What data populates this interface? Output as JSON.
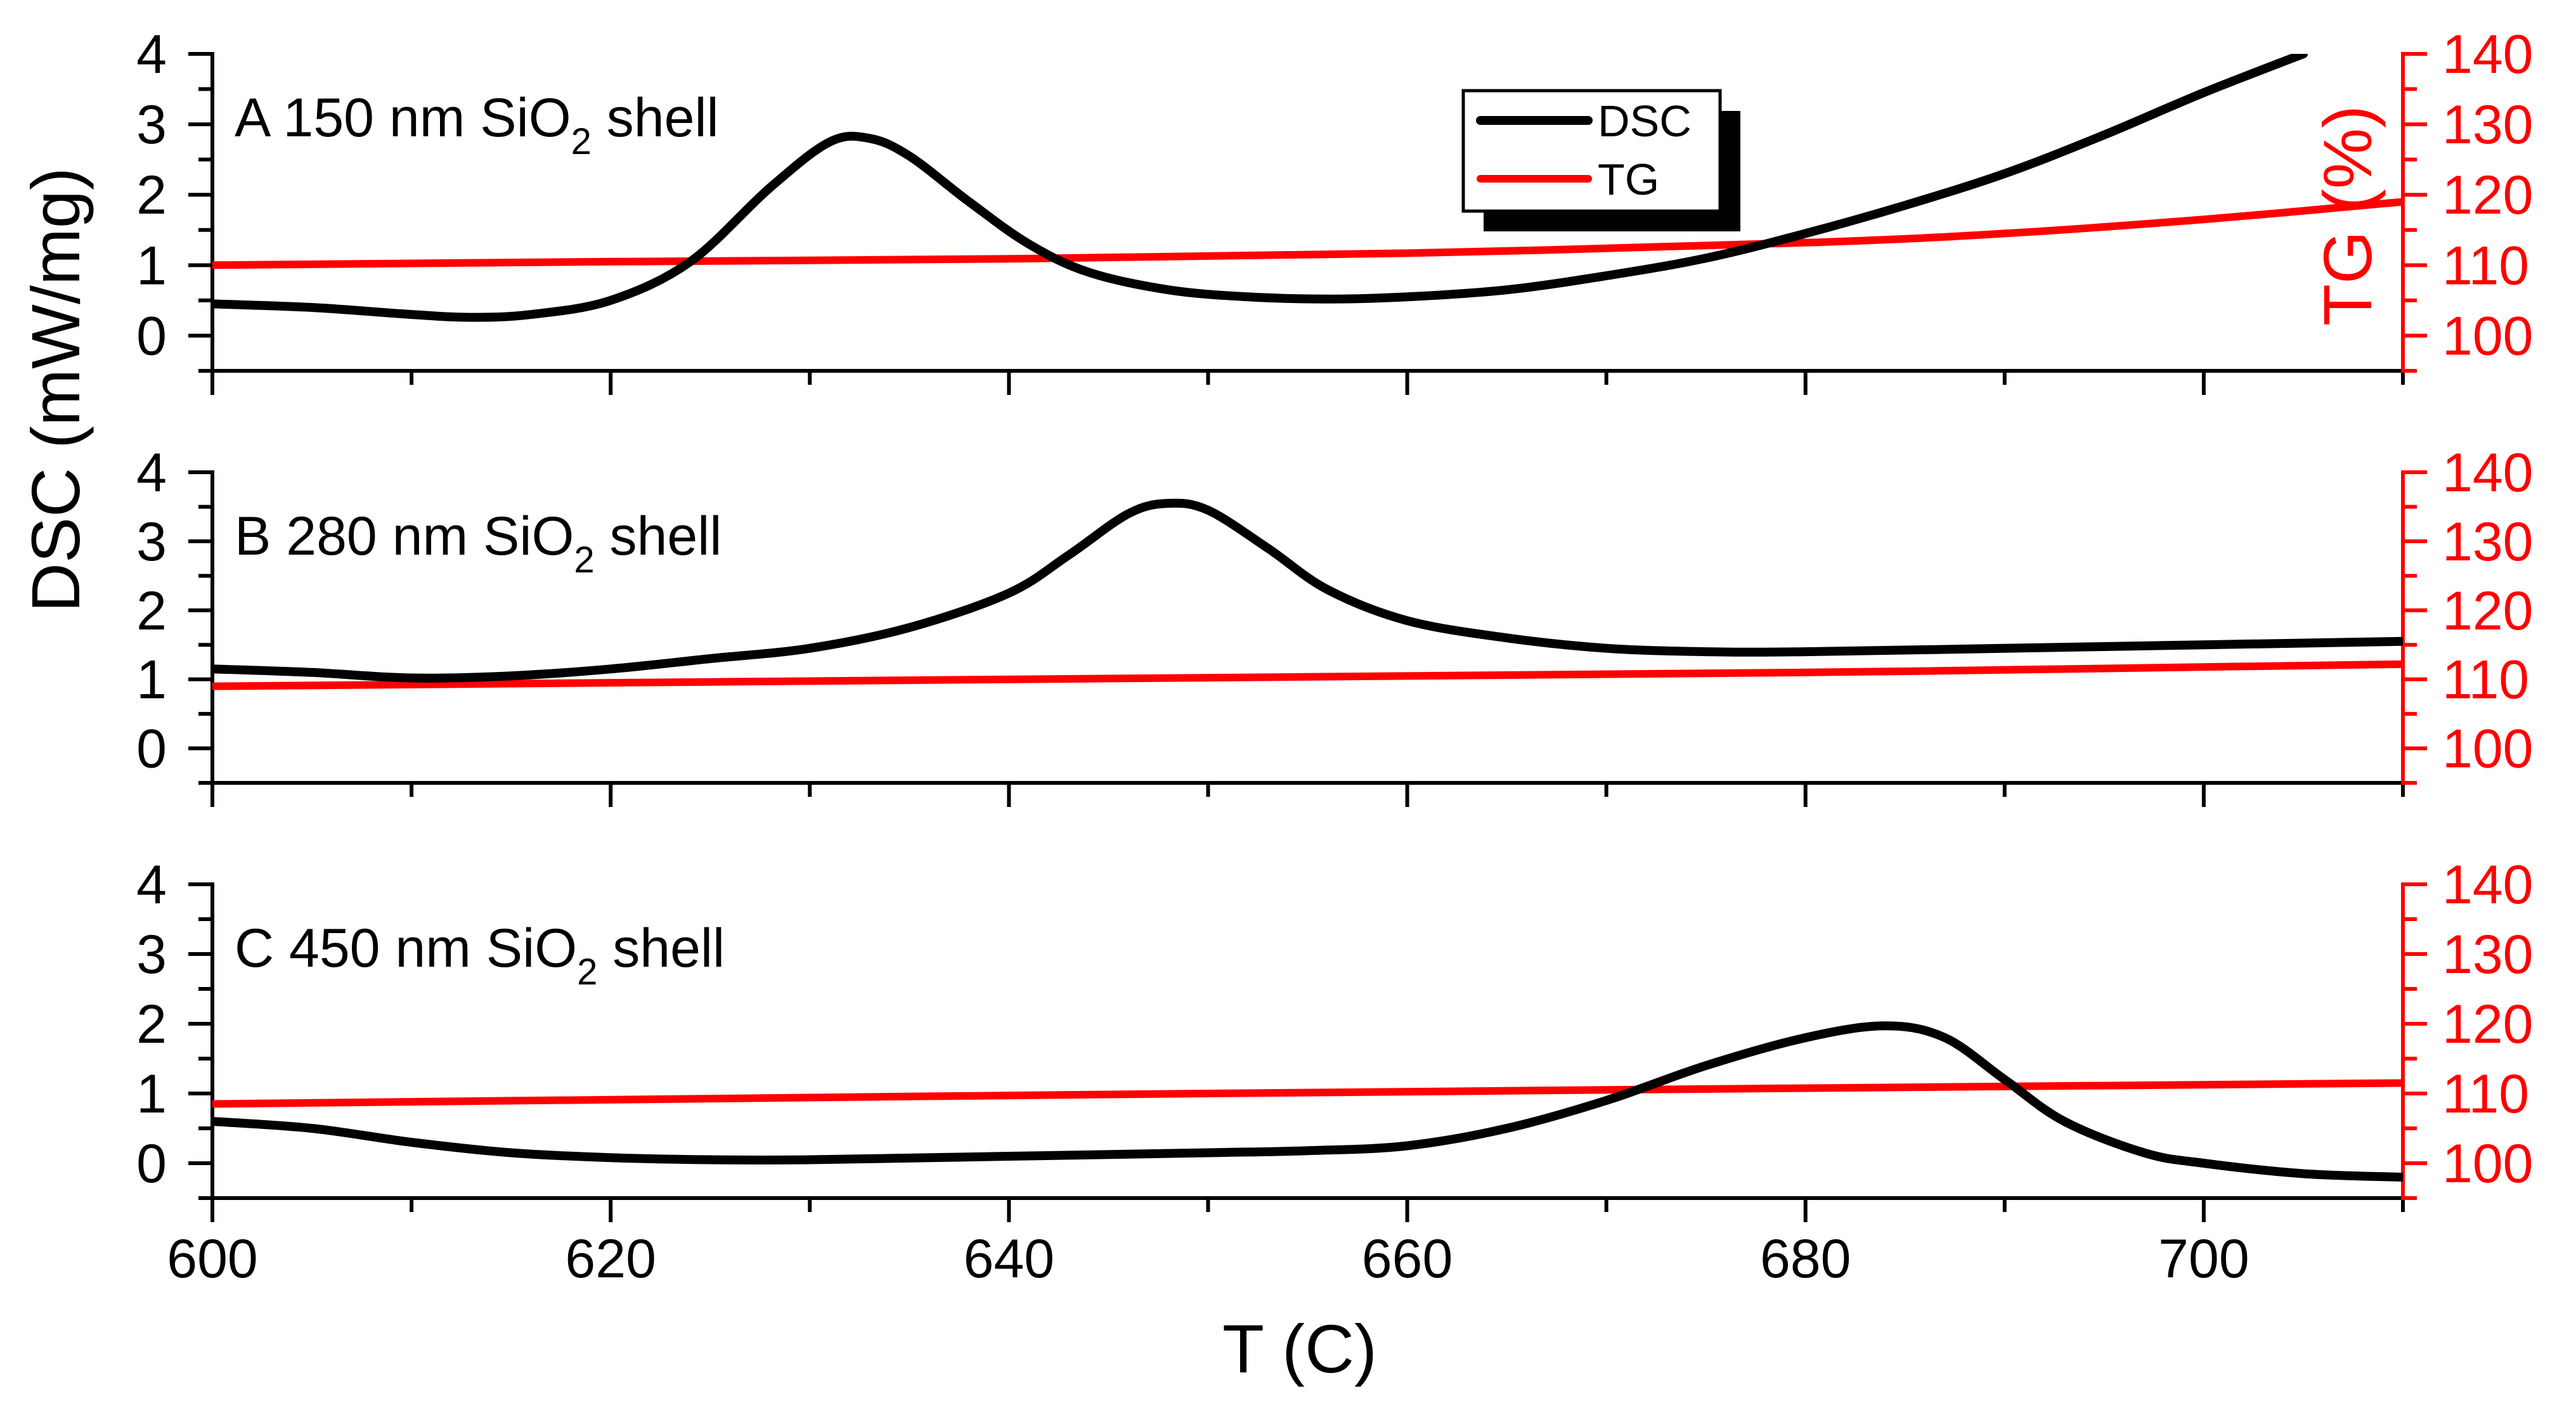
{
  "chart_data": {
    "type": "line",
    "xlabel": "T (C)",
    "ylabel_left": "DSC (mW/mg)",
    "ylabel_right": "TG (%)",
    "xlim": [
      600,
      710
    ],
    "x_ticks": [
      600,
      620,
      640,
      660,
      680,
      700
    ],
    "ylim_left": [
      -0.5,
      4
    ],
    "y_ticks_left": [
      0,
      1,
      2,
      3,
      4
    ],
    "ylim_right": [
      95,
      140
    ],
    "y_ticks_right": [
      100,
      110,
      120,
      130,
      140
    ],
    "colors": {
      "DSC": "#000000",
      "TG": "#ff0000"
    },
    "legend": {
      "placement": "top-center of panel A",
      "entries": [
        {
          "name": "DSC",
          "color": "#000000"
        },
        {
          "name": "TG",
          "color": "#ff0000"
        }
      ]
    },
    "panels": [
      {
        "id": "A",
        "label_prefix": "A  150 nm SiO",
        "label_sub": "2",
        "label_suffix": " shell",
        "series": [
          {
            "name": "DSC",
            "axis": "left",
            "x": [
              600,
              605,
              610,
              613,
              616,
              620,
              624,
              628,
              631,
              633,
              635,
              638,
              641,
              644,
              648,
              652,
              656,
              660,
              665,
              670,
              675,
              680,
              685,
              690,
              695,
              700,
              705
            ],
            "y": [
              0.45,
              0.4,
              0.3,
              0.26,
              0.3,
              0.5,
              1.05,
              2.1,
              2.75,
              2.8,
              2.55,
              1.9,
              1.3,
              0.9,
              0.65,
              0.55,
              0.52,
              0.55,
              0.65,
              0.85,
              1.1,
              1.45,
              1.85,
              2.3,
              2.85,
              3.45,
              4.0
            ]
          },
          {
            "name": "TG",
            "axis": "right",
            "x": [
              600,
              620,
              640,
              660,
              680,
              690,
              700,
              710
            ],
            "y": [
              110.0,
              110.5,
              110.9,
              111.7,
              113.2,
              114.5,
              116.5,
              119.0
            ]
          }
        ]
      },
      {
        "id": "B",
        "label_prefix": "B  280 nm SiO",
        "label_sub": "2",
        "label_suffix": " shell",
        "series": [
          {
            "name": "DSC",
            "axis": "left",
            "x": [
              600,
              605,
              610,
              615,
              620,
              625,
              630,
              635,
              640,
              643,
              646,
              648,
              650,
              653,
              656,
              660,
              665,
              670,
              675,
              680,
              690,
              700,
              710
            ],
            "y": [
              1.15,
              1.1,
              1.02,
              1.05,
              1.15,
              1.3,
              1.45,
              1.75,
              2.25,
              2.8,
              3.4,
              3.55,
              3.45,
              2.9,
              2.3,
              1.85,
              1.6,
              1.45,
              1.4,
              1.4,
              1.45,
              1.5,
              1.55
            ]
          },
          {
            "name": "TG",
            "axis": "right",
            "x": [
              600,
              640,
              680,
              710
            ],
            "y": [
              109.0,
              110.0,
              111.0,
              112.2
            ]
          }
        ]
      },
      {
        "id": "C",
        "label_prefix": "C  450 nm SiO",
        "label_sub": "2",
        "label_suffix": " shell",
        "series": [
          {
            "name": "DSC",
            "axis": "left",
            "x": [
              600,
              605,
              610,
              615,
              620,
              625,
              630,
              640,
              650,
              655,
              660,
              665,
              670,
              675,
              680,
              684,
              687,
              690,
              693,
              697,
              700,
              705,
              710
            ],
            "y": [
              0.6,
              0.5,
              0.3,
              0.15,
              0.08,
              0.05,
              0.05,
              0.1,
              0.15,
              0.18,
              0.25,
              0.5,
              0.9,
              1.4,
              1.8,
              1.97,
              1.8,
              1.2,
              0.6,
              0.15,
              0.0,
              -0.15,
              -0.2
            ]
          },
          {
            "name": "TG",
            "axis": "right",
            "x": [
              600,
              650,
              710
            ],
            "y": [
              108.5,
              110.0,
              111.5
            ]
          }
        ]
      }
    ]
  }
}
